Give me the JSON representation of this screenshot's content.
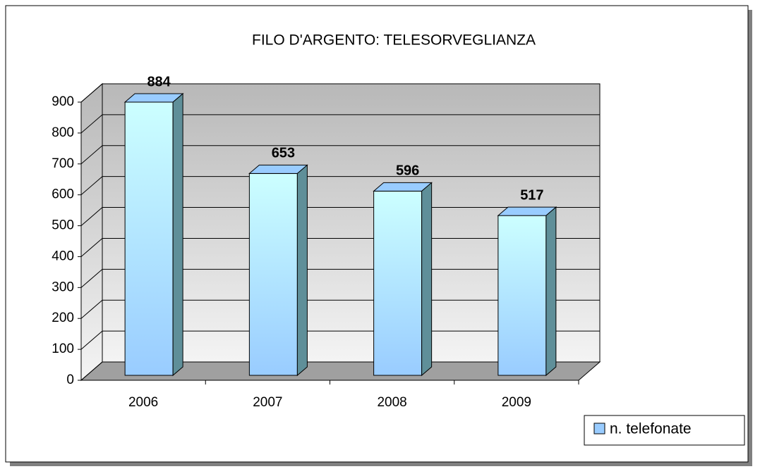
{
  "chart_data": {
    "type": "bar",
    "title": "FILO D'ARGENTO: TELESORVEGLIANZA",
    "categories": [
      "2006",
      "2007",
      "2008",
      "2009"
    ],
    "series": [
      {
        "name": "n. telefonate",
        "color": "#99ccff",
        "values": [
          884,
          653,
          596,
          517
        ]
      }
    ],
    "ylim": [
      0,
      900
    ],
    "yticks": [
      0,
      100,
      200,
      300,
      400,
      500,
      600,
      700,
      800,
      900
    ],
    "grid": true
  }
}
